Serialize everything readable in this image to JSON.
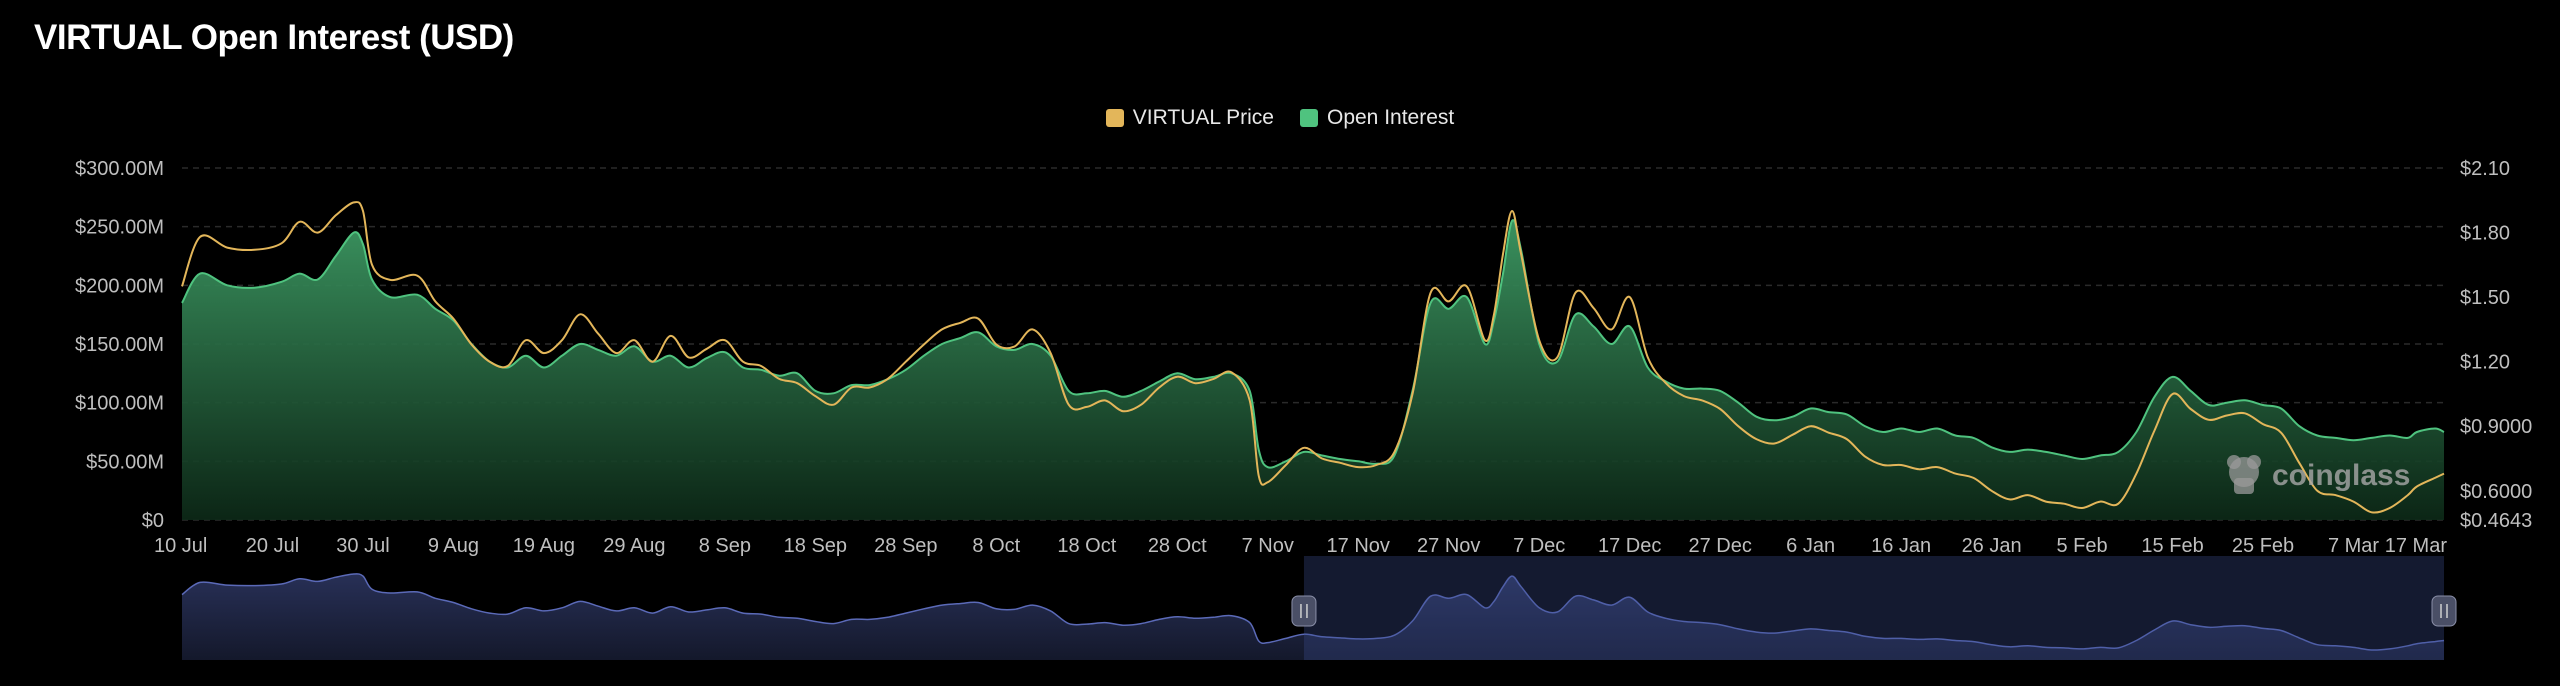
{
  "title": "VIRTUAL Open Interest (USD)",
  "legend": {
    "price_label": "VIRTUAL Price",
    "oi_label": "Open Interest"
  },
  "watermark": "coinglass",
  "colors": {
    "price": "#e3b65a",
    "oi_line": "#4fc37f",
    "oi_fill_top": "#3d9963",
    "grid": "#2a2a2a",
    "axis_text": "#bfbfbf",
    "navigator_line": "#5b6ab8",
    "navigator_fill": "#1e2540",
    "navigator_selected": "#262d4a"
  },
  "chart_data": {
    "type": "area",
    "x_tick_labels": [
      "10 Jul",
      "20 Jul",
      "30 Jul",
      "9 Aug",
      "19 Aug",
      "29 Aug",
      "8 Sep",
      "18 Sep",
      "28 Sep",
      "8 Oct",
      "18 Oct",
      "28 Oct",
      "7 Nov",
      "17 Nov",
      "27 Nov",
      "7 Dec",
      "17 Dec",
      "27 Dec",
      "6 Jan",
      "16 Jan",
      "26 Jan",
      "5 Feb",
      "15 Feb",
      "25 Feb",
      "7 Mar",
      "17 Mar"
    ],
    "y_left": {
      "label": "",
      "ylim": [
        0,
        300
      ],
      "unit": "M USD",
      "tick_values": [
        0,
        50,
        100,
        150,
        200,
        250,
        300
      ],
      "tick_labels": [
        "$0",
        "$50.00M",
        "$100.00M",
        "$150.00M",
        "$200.00M",
        "$250.00M",
        "$300.00M"
      ]
    },
    "y_right": {
      "label": "",
      "ylim": [
        0.4643,
        2.1
      ],
      "tick_values": [
        0.4643,
        0.6,
        0.9,
        1.2,
        1.5,
        1.8,
        2.1
      ],
      "tick_labels": [
        "$0.4643",
        "$0.6000",
        "$0.9000",
        "$1.20",
        "$1.50",
        "$1.80",
        "$2.10"
      ]
    },
    "grid": true,
    "legend_position": "top-center",
    "x_days_range": [
      0,
      250
    ],
    "series": [
      {
        "name": "Open Interest",
        "axis": "left",
        "points": [
          [
            0,
            185
          ],
          [
            2,
            210
          ],
          [
            5,
            200
          ],
          [
            8,
            198
          ],
          [
            11,
            203
          ],
          [
            13,
            210
          ],
          [
            15,
            205
          ],
          [
            17,
            225
          ],
          [
            19,
            245
          ],
          [
            20,
            235
          ],
          [
            21,
            205
          ],
          [
            23,
            190
          ],
          [
            26,
            192
          ],
          [
            28,
            180
          ],
          [
            30,
            170
          ],
          [
            32,
            150
          ],
          [
            34,
            135
          ],
          [
            36,
            130
          ],
          [
            38,
            140
          ],
          [
            40,
            130
          ],
          [
            42,
            140
          ],
          [
            44,
            150
          ],
          [
            46,
            145
          ],
          [
            48,
            140
          ],
          [
            50,
            148
          ],
          [
            52,
            135
          ],
          [
            54,
            140
          ],
          [
            56,
            130
          ],
          [
            58,
            138
          ],
          [
            60,
            143
          ],
          [
            62,
            130
          ],
          [
            64,
            128
          ],
          [
            66,
            123
          ],
          [
            68,
            125
          ],
          [
            70,
            110
          ],
          [
            72,
            108
          ],
          [
            74,
            115
          ],
          [
            76,
            115
          ],
          [
            78,
            120
          ],
          [
            80,
            128
          ],
          [
            82,
            140
          ],
          [
            84,
            150
          ],
          [
            86,
            155
          ],
          [
            88,
            160
          ],
          [
            90,
            148
          ],
          [
            92,
            145
          ],
          [
            94,
            150
          ],
          [
            96,
            140
          ],
          [
            98,
            110
          ],
          [
            100,
            108
          ],
          [
            102,
            110
          ],
          [
            104,
            105
          ],
          [
            106,
            110
          ],
          [
            108,
            118
          ],
          [
            110,
            125
          ],
          [
            112,
            120
          ],
          [
            114,
            122
          ],
          [
            116,
            125
          ],
          [
            118,
            110
          ],
          [
            119,
            60
          ],
          [
            120,
            45
          ],
          [
            122,
            50
          ],
          [
            124,
            58
          ],
          [
            126,
            55
          ],
          [
            128,
            52
          ],
          [
            130,
            50
          ],
          [
            132,
            48
          ],
          [
            134,
            55
          ],
          [
            136,
            110
          ],
          [
            138,
            185
          ],
          [
            140,
            180
          ],
          [
            142,
            190
          ],
          [
            144,
            150
          ],
          [
            145,
            170
          ],
          [
            146,
            210
          ],
          [
            147,
            255
          ],
          [
            148,
            230
          ],
          [
            150,
            150
          ],
          [
            152,
            135
          ],
          [
            154,
            175
          ],
          [
            156,
            165
          ],
          [
            158,
            150
          ],
          [
            160,
            165
          ],
          [
            162,
            130
          ],
          [
            164,
            118
          ],
          [
            166,
            112
          ],
          [
            168,
            112
          ],
          [
            170,
            110
          ],
          [
            172,
            100
          ],
          [
            174,
            88
          ],
          [
            176,
            85
          ],
          [
            178,
            88
          ],
          [
            180,
            95
          ],
          [
            182,
            92
          ],
          [
            184,
            90
          ],
          [
            186,
            80
          ],
          [
            188,
            75
          ],
          [
            190,
            78
          ],
          [
            192,
            75
          ],
          [
            194,
            78
          ],
          [
            196,
            72
          ],
          [
            198,
            70
          ],
          [
            200,
            62
          ],
          [
            202,
            58
          ],
          [
            204,
            60
          ],
          [
            206,
            58
          ],
          [
            208,
            55
          ],
          [
            210,
            52
          ],
          [
            212,
            55
          ],
          [
            214,
            58
          ],
          [
            216,
            75
          ],
          [
            218,
            105
          ],
          [
            220,
            122
          ],
          [
            222,
            110
          ],
          [
            224,
            98
          ],
          [
            226,
            100
          ],
          [
            228,
            102
          ],
          [
            230,
            98
          ],
          [
            232,
            95
          ],
          [
            234,
            80
          ],
          [
            236,
            72
          ],
          [
            238,
            70
          ],
          [
            240,
            68
          ],
          [
            242,
            70
          ],
          [
            244,
            72
          ],
          [
            246,
            70
          ],
          [
            247,
            75
          ],
          [
            249,
            78
          ],
          [
            250,
            75
          ]
        ]
      },
      {
        "name": "VIRTUAL Price",
        "axis": "right",
        "points": [
          [
            0,
            1.55
          ],
          [
            2,
            1.78
          ],
          [
            5,
            1.73
          ],
          [
            8,
            1.72
          ],
          [
            11,
            1.75
          ],
          [
            13,
            1.85
          ],
          [
            15,
            1.8
          ],
          [
            17,
            1.88
          ],
          [
            19,
            1.94
          ],
          [
            20,
            1.9
          ],
          [
            21,
            1.65
          ],
          [
            23,
            1.58
          ],
          [
            26,
            1.6
          ],
          [
            28,
            1.48
          ],
          [
            30,
            1.4
          ],
          [
            32,
            1.28
          ],
          [
            34,
            1.2
          ],
          [
            36,
            1.18
          ],
          [
            38,
            1.3
          ],
          [
            40,
            1.24
          ],
          [
            42,
            1.3
          ],
          [
            44,
            1.42
          ],
          [
            46,
            1.33
          ],
          [
            48,
            1.24
          ],
          [
            50,
            1.3
          ],
          [
            52,
            1.2
          ],
          [
            54,
            1.32
          ],
          [
            56,
            1.22
          ],
          [
            58,
            1.26
          ],
          [
            60,
            1.3
          ],
          [
            62,
            1.2
          ],
          [
            64,
            1.18
          ],
          [
            66,
            1.12
          ],
          [
            68,
            1.1
          ],
          [
            70,
            1.04
          ],
          [
            72,
            1.0
          ],
          [
            74,
            1.08
          ],
          [
            76,
            1.08
          ],
          [
            78,
            1.12
          ],
          [
            80,
            1.2
          ],
          [
            82,
            1.28
          ],
          [
            84,
            1.35
          ],
          [
            86,
            1.38
          ],
          [
            88,
            1.4
          ],
          [
            90,
            1.28
          ],
          [
            92,
            1.27
          ],
          [
            94,
            1.35
          ],
          [
            96,
            1.24
          ],
          [
            98,
            1.0
          ],
          [
            100,
            0.99
          ],
          [
            102,
            1.02
          ],
          [
            104,
            0.97
          ],
          [
            106,
            1.0
          ],
          [
            108,
            1.08
          ],
          [
            110,
            1.13
          ],
          [
            112,
            1.1
          ],
          [
            114,
            1.12
          ],
          [
            116,
            1.15
          ],
          [
            118,
            1.02
          ],
          [
            119,
            0.67
          ],
          [
            120,
            0.64
          ],
          [
            122,
            0.72
          ],
          [
            124,
            0.8
          ],
          [
            126,
            0.75
          ],
          [
            128,
            0.73
          ],
          [
            130,
            0.71
          ],
          [
            132,
            0.72
          ],
          [
            134,
            0.78
          ],
          [
            136,
            1.05
          ],
          [
            138,
            1.52
          ],
          [
            140,
            1.48
          ],
          [
            142,
            1.55
          ],
          [
            144,
            1.3
          ],
          [
            145,
            1.42
          ],
          [
            146,
            1.7
          ],
          [
            147,
            1.9
          ],
          [
            148,
            1.7
          ],
          [
            150,
            1.3
          ],
          [
            152,
            1.22
          ],
          [
            154,
            1.52
          ],
          [
            156,
            1.45
          ],
          [
            158,
            1.35
          ],
          [
            160,
            1.5
          ],
          [
            162,
            1.22
          ],
          [
            164,
            1.1
          ],
          [
            166,
            1.04
          ],
          [
            168,
            1.02
          ],
          [
            170,
            0.98
          ],
          [
            172,
            0.9
          ],
          [
            174,
            0.84
          ],
          [
            176,
            0.82
          ],
          [
            178,
            0.86
          ],
          [
            180,
            0.9
          ],
          [
            182,
            0.87
          ],
          [
            184,
            0.84
          ],
          [
            186,
            0.76
          ],
          [
            188,
            0.72
          ],
          [
            190,
            0.72
          ],
          [
            192,
            0.7
          ],
          [
            194,
            0.71
          ],
          [
            196,
            0.68
          ],
          [
            198,
            0.66
          ],
          [
            200,
            0.6
          ],
          [
            202,
            0.56
          ],
          [
            204,
            0.58
          ],
          [
            206,
            0.55
          ],
          [
            208,
            0.54
          ],
          [
            210,
            0.52
          ],
          [
            212,
            0.55
          ],
          [
            214,
            0.54
          ],
          [
            216,
            0.68
          ],
          [
            218,
            0.88
          ],
          [
            220,
            1.05
          ],
          [
            222,
            0.98
          ],
          [
            224,
            0.93
          ],
          [
            226,
            0.95
          ],
          [
            228,
            0.96
          ],
          [
            230,
            0.91
          ],
          [
            232,
            0.87
          ],
          [
            234,
            0.73
          ],
          [
            236,
            0.6
          ],
          [
            238,
            0.58
          ],
          [
            240,
            0.55
          ],
          [
            242,
            0.5
          ],
          [
            244,
            0.52
          ],
          [
            246,
            0.58
          ],
          [
            247,
            0.62
          ],
          [
            249,
            0.66
          ],
          [
            250,
            0.68
          ]
        ]
      }
    ],
    "navigator": {
      "selected_range_days": [
        124,
        250
      ]
    }
  }
}
